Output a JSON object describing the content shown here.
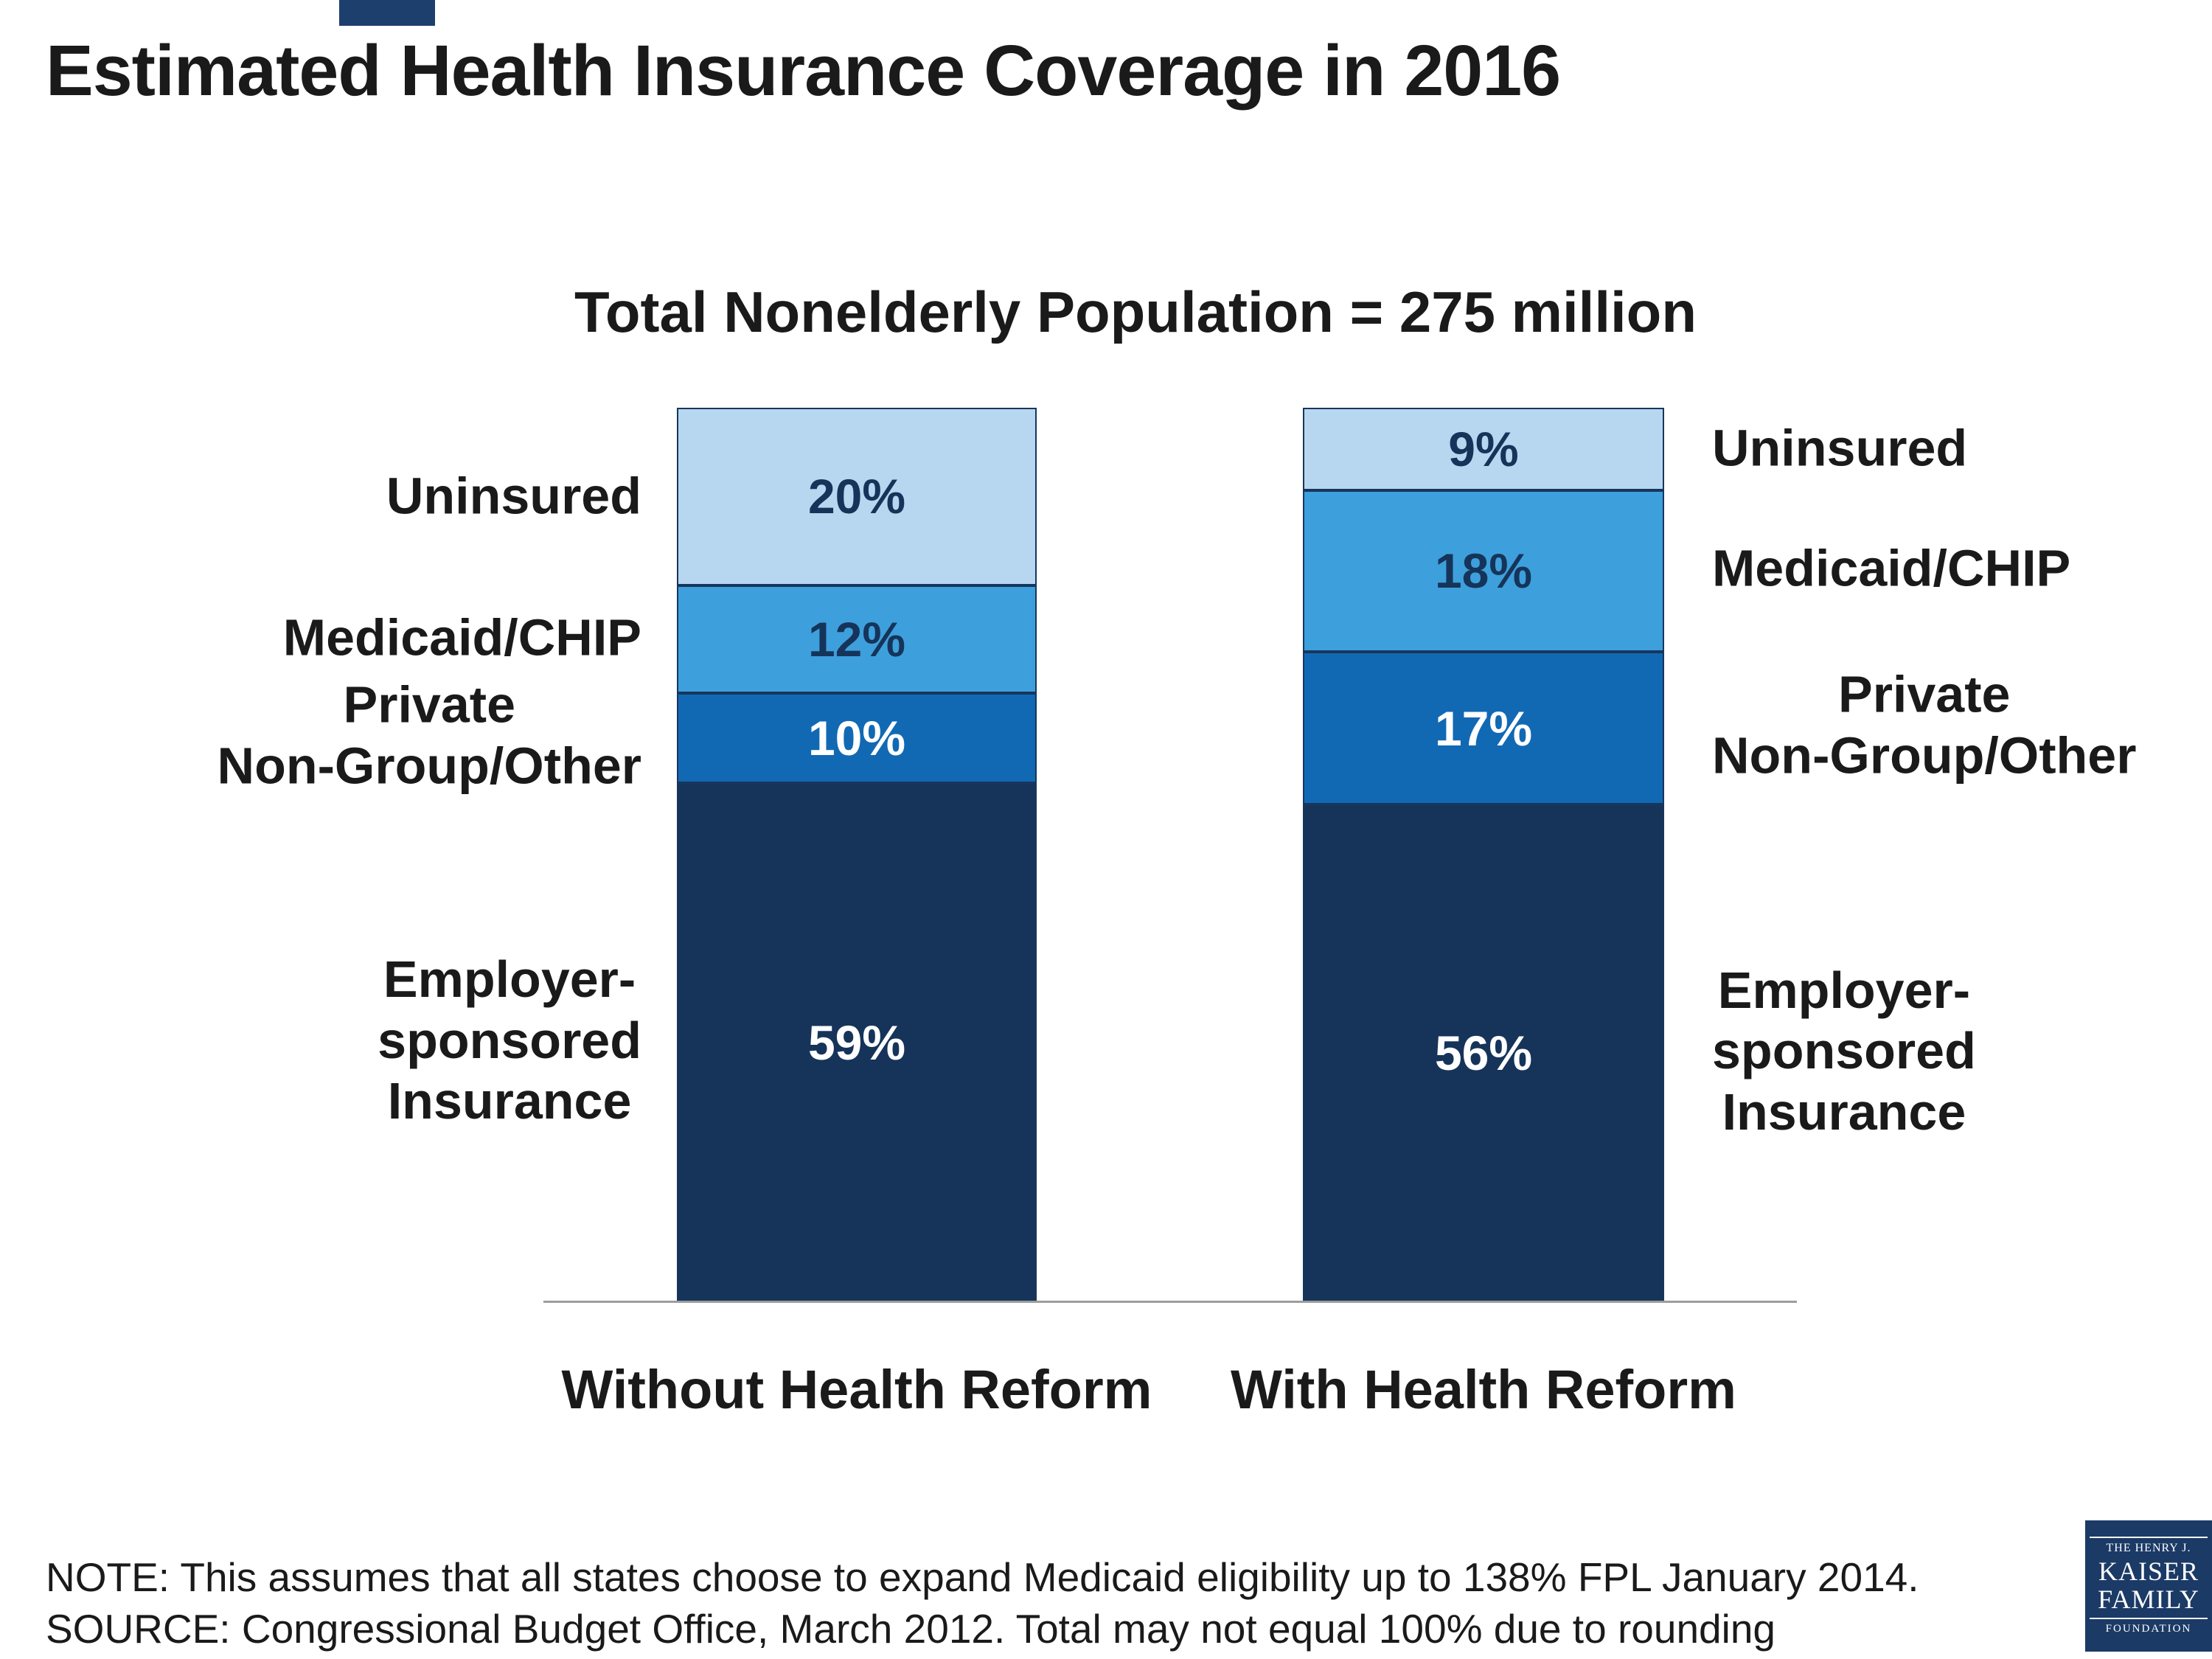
{
  "slide": {
    "title": "Estimated Health Insurance Coverage in 2016",
    "note": "NOTE: This assumes that all states choose to expand Medicaid eligibility up to 138% FPL January 2014.",
    "source": "SOURCE:  Congressional Budget Office, March 2012. Total may not equal 100% due to rounding"
  },
  "chart_data": {
    "type": "bar",
    "variant": "stacked-column",
    "title": "Total Nonelderly Population = 275 million",
    "unit": "%",
    "ylim": [
      0,
      100
    ],
    "categories": [
      "Uninsured",
      "Medicaid/CHIP",
      "Private Non-Group/Other",
      "Employer-sponsored Insurance"
    ],
    "segment_colors": [
      "#b7d7f0",
      "#3da0dc",
      "#1169b4",
      "#16345a"
    ],
    "segment_label_colors": [
      "#16345a",
      "#16345a",
      "#ffffff",
      "#ffffff"
    ],
    "bars": [
      {
        "label": "Without Health Reform",
        "values": [
          20,
          12,
          10,
          59
        ]
      },
      {
        "label": "With Health Reform",
        "values": [
          9,
          18,
          17,
          56
        ]
      }
    ],
    "side_labels_left": [
      "Uninsured",
      "Medicaid/CHIP",
      "Private\nNon-Group/Other",
      "Employer-\nsponsored\nInsurance"
    ],
    "side_labels_right": [
      "Uninsured",
      "Medicaid/CHIP",
      "Private\nNon-Group/Other",
      "Employer-\nsponsored\nInsurance"
    ]
  },
  "logo": {
    "tagline": "THE HENRY J.",
    "name_line1": "KAISER",
    "name_line2": "FAMILY",
    "name_line3": "FOUNDATION"
  }
}
